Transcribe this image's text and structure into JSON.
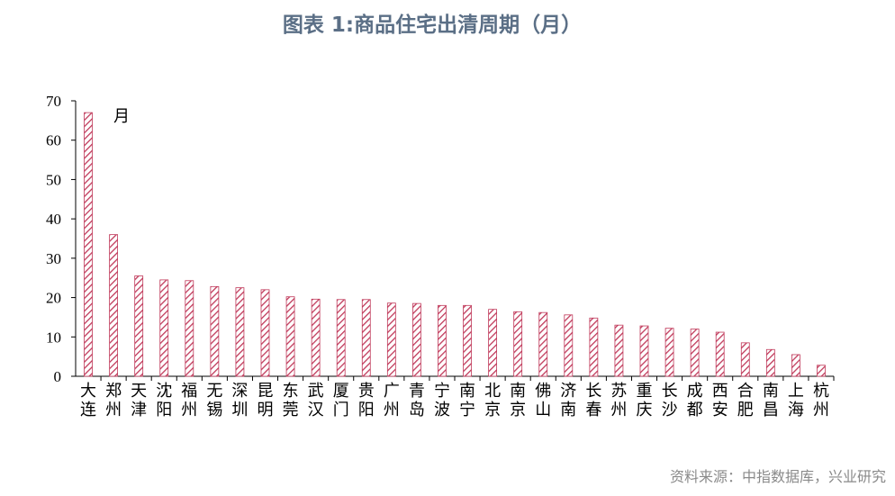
{
  "title": "图表 1:商品住宅出清周期（月）",
  "source": "资料来源：中指数据库，兴业研究",
  "chart_data": {
    "type": "bar",
    "title": "图表 1:商品住宅出清周期（月）",
    "unit_annotation": "月",
    "ylim": [
      0,
      70
    ],
    "yticks": [
      0,
      10,
      20,
      30,
      40,
      50,
      60,
      70
    ],
    "grid": false,
    "bar_color": "#c0395a",
    "categories": [
      "大连",
      "郑州",
      "天津",
      "沈阳",
      "福州",
      "无锡",
      "深圳",
      "昆明",
      "东莞",
      "武汉",
      "厦门",
      "贵阳",
      "广州",
      "青岛",
      "宁波",
      "南宁",
      "北京",
      "南京",
      "佛山",
      "济南",
      "长春",
      "苏州",
      "重庆",
      "长沙",
      "成都",
      "西安",
      "合肥",
      "南昌",
      "上海",
      "杭州"
    ],
    "values": [
      67,
      36,
      25.5,
      24.5,
      24.3,
      22.8,
      22.5,
      22,
      20.2,
      19.6,
      19.5,
      19.5,
      18.6,
      18.5,
      18,
      18,
      17,
      16.4,
      16.2,
      15.6,
      14.8,
      13,
      12.8,
      12.2,
      12,
      11.2,
      8.5,
      6.8,
      5.5,
      2.8
    ]
  }
}
